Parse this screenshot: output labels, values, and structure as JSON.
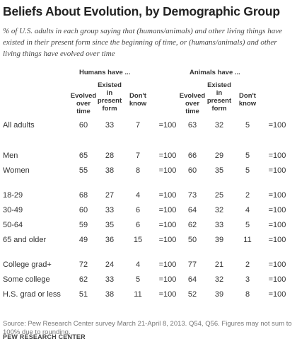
{
  "chart_data": {
    "type": "table",
    "title": "Beliefs About Evolution, by Demographic Group",
    "subtitle": "% of U.S. adults in each group saying that (humans/animals) and other living things have existed in their present form since the beginning of time, or (humans/animals) and other living things have evolved over time",
    "groups": [
      {
        "label": "Humans have ...",
        "columns": [
          "Evolved over time",
          "Existed in present form",
          "Don't know"
        ]
      },
      {
        "label": "Animals have ...",
        "columns": [
          "Evolved over time",
          "Existed in present form",
          "Don't know"
        ]
      }
    ],
    "rows": [
      {
        "label": "All adults",
        "humans": [
          "60",
          "33",
          "7",
          "=100"
        ],
        "animals": [
          "63",
          "32",
          "5",
          "=100"
        ]
      },
      {
        "label": "Men",
        "humans": [
          "65",
          "28",
          "7",
          "=100"
        ],
        "animals": [
          "66",
          "29",
          "5",
          "=100"
        ]
      },
      {
        "label": "Women",
        "humans": [
          "55",
          "38",
          "8",
          "=100"
        ],
        "animals": [
          "60",
          "35",
          "5",
          "=100"
        ]
      },
      {
        "label": "18-29",
        "humans": [
          "68",
          "27",
          "4",
          "=100"
        ],
        "animals": [
          "73",
          "25",
          "2",
          "=100"
        ]
      },
      {
        "label": "30-49",
        "humans": [
          "60",
          "33",
          "6",
          "=100"
        ],
        "animals": [
          "64",
          "32",
          "4",
          "=100"
        ]
      },
      {
        "label": "50-64",
        "humans": [
          "59",
          "35",
          "6",
          "=100"
        ],
        "animals": [
          "62",
          "33",
          "5",
          "=100"
        ]
      },
      {
        "label": "65 and older",
        "humans": [
          "49",
          "36",
          "15",
          "=100"
        ],
        "animals": [
          "50",
          "39",
          "11",
          "=100"
        ]
      },
      {
        "label": "College grad+",
        "humans": [
          "72",
          "24",
          "4",
          "=100"
        ],
        "animals": [
          "77",
          "21",
          "2",
          "=100"
        ]
      },
      {
        "label": "Some college",
        "humans": [
          "62",
          "33",
          "5",
          "=100"
        ],
        "animals": [
          "64",
          "32",
          "3",
          "=100"
        ]
      },
      {
        "label": "H.S. grad or less",
        "humans": [
          "51",
          "38",
          "11",
          "=100"
        ],
        "animals": [
          "52",
          "39",
          "8",
          "=100"
        ]
      }
    ],
    "footnote": "Source: Pew Research Center survey March 21-April 8, 2013. Q54, Q56. Figures may not sum to 100% due to rounding.",
    "source": "PEW RESEARCH CENTER"
  }
}
